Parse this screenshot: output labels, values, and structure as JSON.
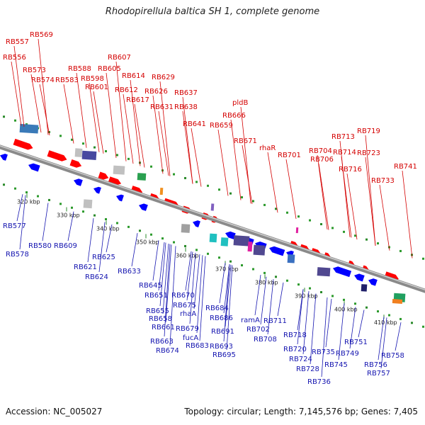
{
  "title": "Rhodopirellula baltica SH 1, complete genome",
  "footer": {
    "accession": "Accession: NC_005027",
    "stats": "Topology: circular; Length: 7,145,576 bp; Genes: 7,405"
  },
  "colors": {
    "forward_gene": "#ff0000",
    "reverse_gene": "#0000ff",
    "top_label": "#d40000",
    "bottom_label": "#1515b0",
    "backbone": "#8a8a8a",
    "tick": "#2a8a2a"
  },
  "ticks": [
    "320 kbp",
    "330 kbp",
    "340 kbp",
    "350 kbp",
    "360 kbp",
    "370 kbp",
    "380 kbp",
    "390 kbp",
    "400 kbp",
    "410 kbp"
  ],
  "top_labels": [
    "RB557",
    "RB569",
    "RB556",
    "RB573",
    "RB574",
    "RB583",
    "RB588",
    "RB598",
    "RB601",
    "RB605",
    "RB607",
    "RB612",
    "RB614",
    "RB617",
    "RB626",
    "RB629",
    "RB631",
    "RB637",
    "RB638",
    "RB641",
    "RB659",
    "pldB",
    "RB666",
    "RB671",
    "rhaR",
    "RB701",
    "RB704",
    "RB706",
    "RB713",
    "RB714",
    "RB716",
    "RB719",
    "RB723",
    "RB733",
    "RB741"
  ],
  "bottom_labels": [
    "RB577",
    "RB578",
    "RB580",
    "RB609",
    "RB621",
    "RB624",
    "RB625",
    "RB633",
    "RB645",
    "RB651",
    "RB655",
    "RB658",
    "RB661",
    "RB663",
    "RB670",
    "RB674",
    "RB675",
    "rhaA",
    "RB679",
    "fucA",
    "RB683",
    "RB684",
    "RB686",
    "RB691",
    "RB693",
    "RB695",
    "ramA",
    "RB702",
    "RB708",
    "RB711",
    "RB718",
    "RB720",
    "RB724",
    "RB728",
    "RB735",
    "RB736",
    "RB745",
    "RB749",
    "RB751",
    "RB756",
    "RB757",
    "RB758"
  ]
}
